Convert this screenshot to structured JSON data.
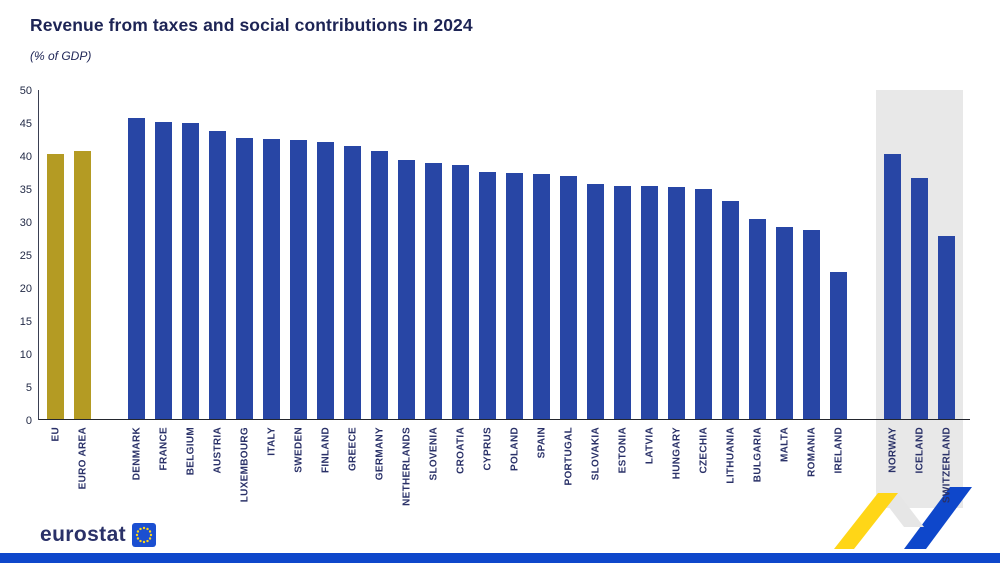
{
  "title": "Revenue from taxes and social contributions in 2024",
  "subtitle": "(% of GDP)",
  "footer": {
    "logo_text": "eurostat"
  },
  "colors": {
    "eu_aggregate_bar": "#b49b23",
    "country_bar": "#2846a5",
    "efta_band": "#e8e8e8",
    "accent_yellow": "#ffd617",
    "accent_blue": "#0e47cb"
  },
  "chart_data": {
    "type": "bar",
    "title": "Revenue from taxes and social contributions in 2024",
    "ylabel": "% of GDP",
    "ylim": [
      0,
      50
    ],
    "yticks": [
      0,
      5,
      10,
      15,
      20,
      25,
      30,
      35,
      40,
      45,
      50
    ],
    "grid": false,
    "legend": null,
    "groups": [
      {
        "name": "eu-aggregates",
        "color": "#b49b23",
        "highlight": false,
        "bars": [
          {
            "label": "EU",
            "value": 40.3
          },
          {
            "label": "EURO AREA",
            "value": 40.7
          }
        ]
      },
      {
        "name": "eu-countries",
        "color": "#2846a5",
        "highlight": false,
        "bars": [
          {
            "label": "DENMARK",
            "value": 45.8
          },
          {
            "label": "FRANCE",
            "value": 45.2
          },
          {
            "label": "BELGIUM",
            "value": 45.0
          },
          {
            "label": "AUSTRIA",
            "value": 43.8
          },
          {
            "label": "LUXEMBOURG",
            "value": 42.7
          },
          {
            "label": "ITALY",
            "value": 42.6
          },
          {
            "label": "SWEDEN",
            "value": 42.4
          },
          {
            "label": "FINLAND",
            "value": 42.1
          },
          {
            "label": "GREECE",
            "value": 41.5
          },
          {
            "label": "GERMANY",
            "value": 40.8
          },
          {
            "label": "NETHERLANDS",
            "value": 39.4
          },
          {
            "label": "SLOVENIA",
            "value": 38.9
          },
          {
            "label": "CROATIA",
            "value": 38.6
          },
          {
            "label": "CYPRUS",
            "value": 37.6
          },
          {
            "label": "POLAND",
            "value": 37.4
          },
          {
            "label": "SPAIN",
            "value": 37.3
          },
          {
            "label": "PORTUGAL",
            "value": 37.0
          },
          {
            "label": "SLOVAKIA",
            "value": 35.8
          },
          {
            "label": "ESTONIA",
            "value": 35.5
          },
          {
            "label": "LATVIA",
            "value": 35.5
          },
          {
            "label": "HUNGARY",
            "value": 35.3
          },
          {
            "label": "CZECHIA",
            "value": 35.0
          },
          {
            "label": "LITHUANIA",
            "value": 33.2
          },
          {
            "label": "BULGARIA",
            "value": 30.5
          },
          {
            "label": "MALTA",
            "value": 29.2
          },
          {
            "label": "ROMANIA",
            "value": 28.8
          },
          {
            "label": "IRELAND",
            "value": 22.4
          }
        ]
      },
      {
        "name": "efta-countries",
        "color": "#2846a5",
        "highlight": true,
        "bars": [
          {
            "label": "NORWAY",
            "value": 40.3
          },
          {
            "label": "ICELAND",
            "value": 36.7
          },
          {
            "label": "SWITZERLAND",
            "value": 27.9
          }
        ]
      }
    ]
  }
}
